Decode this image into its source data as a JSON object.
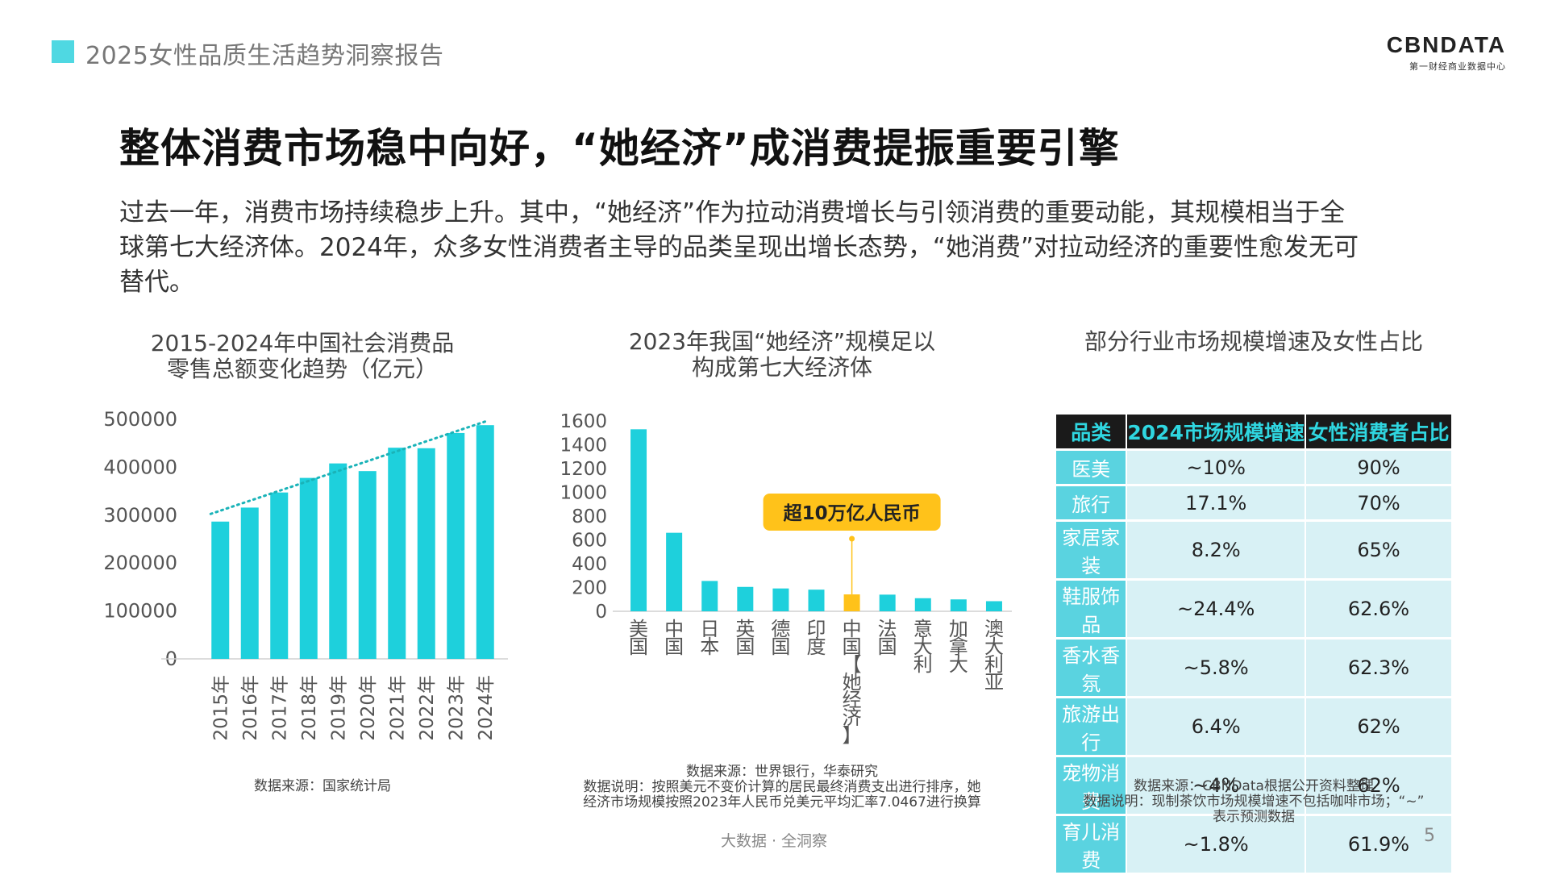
{
  "header": {
    "title": "2025女性品质生活趋势洞察报告"
  },
  "logo": {
    "main": "CBNDATA",
    "sub": "第一财经商业数据中心"
  },
  "main_title": "整体消费市场稳中向好，“她经济”成消费提振重要引擎",
  "intro_lines": [
    "过去一年，消费市场持续稳步上升。其中，“她经济”作为拉动消费增长与引领消费的重要动能，其规模相当于全",
    "球第七大经济体。2024年，众多女性消费者主导的品类呈现出增长态势，“她消费”对拉动经济的重要性愈发无可",
    "替代。"
  ],
  "colors": {
    "accent": "#1ed0dc",
    "highlight": "#ffc21a",
    "trend": "#1ab3b8",
    "table_header_bg": "#1a1a1a",
    "table_header_text": "#2fd6e0",
    "cat_bg": "#5ad3e0",
    "val_bg": "#d8f1f5"
  },
  "chart_data": [
    {
      "type": "bar",
      "title_lines": [
        "2015-2024年中国社会消费品",
        "零售总额变化趋势（亿元）"
      ],
      "categories": [
        "2015年",
        "2016年",
        "2017年",
        "2018年",
        "2019年",
        "2020年",
        "2021年",
        "2022年",
        "2023年",
        "2024年"
      ],
      "values": [
        286588,
        315806,
        347327,
        377783,
        408017,
        391981,
        440823,
        439733,
        471495,
        487895
      ],
      "yticks": [
        "500000",
        "400000",
        "300000",
        "200000",
        "100000",
        "0"
      ],
      "ylim": [
        0,
        500000
      ],
      "trendline": "linear dotted",
      "source": "数据来源：国家统计局"
    },
    {
      "type": "bar",
      "title_lines": [
        "2023年我国“她经济”规模足以",
        "构成第七大经济体"
      ],
      "categories": [
        "美国",
        "中国",
        "日本",
        "英国",
        "德国",
        "印度",
        "中国【她经济】",
        "法国",
        "意大利",
        "加拿大",
        "澳大利亚"
      ],
      "category_labels": [
        "美国",
        "中国",
        "日本",
        "英国",
        "德国",
        "印度",
        "中国【她经济】",
        "法国",
        "意大利",
        "加拿大",
        "澳大利亚"
      ],
      "values": [
        1530,
        660,
        255,
        205,
        192,
        182,
        142,
        140,
        110,
        100,
        85
      ],
      "highlight_index": 6,
      "yticks": [
        "1600",
        "1400",
        "1200",
        "1000",
        "800",
        "600",
        "400",
        "200",
        "0"
      ],
      "ylim": [
        0,
        1600
      ],
      "callout": "超10万亿人民币",
      "notes": [
        "数据来源：世界银行，华泰研究",
        "数据说明：按照美元不变价计算的居民最终消费支出进行排序，她",
        "经济市场规模按照2023年人民币兑美元平均汇率7.0467进行换算"
      ]
    },
    {
      "type": "table",
      "title": "部分行业市场规模增速及女性占比",
      "columns": [
        "品类",
        "2024市场规模增速",
        "女性消费者占比"
      ],
      "rows": [
        [
          "医美",
          "~10%",
          "90%"
        ],
        [
          "旅行",
          "17.1%",
          "70%"
        ],
        [
          "家居家装",
          "8.2%",
          "65%"
        ],
        [
          "鞋服饰品",
          "~24.4%",
          "62.6%"
        ],
        [
          "香水香氛",
          "~5.8%",
          "62.3%"
        ],
        [
          "旅游出行",
          "6.4%",
          "62%"
        ],
        [
          "宠物消费",
          "~4%",
          "62%"
        ],
        [
          "育儿消费",
          "~1.8%",
          "61.9%"
        ]
      ],
      "notes": [
        "数据来源：CBNData根据公开资料整理",
        "数据说明：现制茶饮市场规模增速不包括咖啡市场；“~”",
        "表示预测数据"
      ]
    }
  ],
  "footer": {
    "slogan": "大数据 · 全洞察",
    "page": "5"
  }
}
